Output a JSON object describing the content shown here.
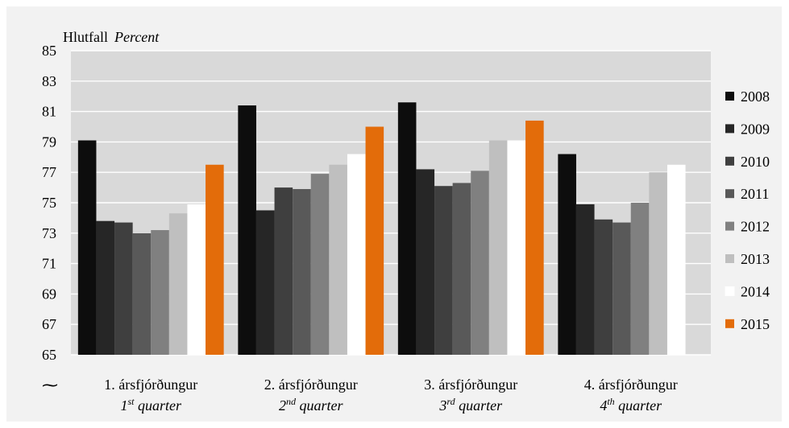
{
  "chart_data": {
    "type": "bar",
    "ylabel": "Hlutfall",
    "ylabel_en": "Percent",
    "ylim": [
      65,
      85
    ],
    "yticks": [
      "65",
      "67",
      "69",
      "71",
      "73",
      "75",
      "77",
      "79",
      "81",
      "83",
      "85"
    ],
    "grid": true,
    "legend_position": "right",
    "break_mark": "⁓",
    "categories": [
      {
        "is": "1. ársfjórðungur",
        "en_num": "1",
        "en_sup": "st",
        "en_rest": " quarter"
      },
      {
        "is": "2. ársfjórðungur",
        "en_num": "2",
        "en_sup": "nd",
        "en_rest": " quarter"
      },
      {
        "is": "3. ársfjórðungur",
        "en_num": "3",
        "en_sup": "rd",
        "en_rest": " quarter"
      },
      {
        "is": "4. ársfjórðungur",
        "en_num": "4",
        "en_sup": "th",
        "en_rest": " quarter"
      }
    ],
    "series": [
      {
        "name": "2008",
        "color": "#0d0d0d",
        "values": [
          79.1,
          81.4,
          81.6,
          78.2
        ]
      },
      {
        "name": "2009",
        "color": "#262626",
        "values": [
          73.8,
          74.5,
          77.2,
          74.9
        ]
      },
      {
        "name": "2010",
        "color": "#3f3f3f",
        "values": [
          73.7,
          76.0,
          76.1,
          73.9
        ]
      },
      {
        "name": "2011",
        "color": "#595959",
        "values": [
          73.0,
          75.9,
          76.3,
          73.7
        ]
      },
      {
        "name": "2012",
        "color": "#808080",
        "values": [
          73.2,
          76.9,
          77.1,
          75.0
        ]
      },
      {
        "name": "2013",
        "color": "#bfbfbf",
        "values": [
          74.3,
          77.5,
          79.1,
          77.0
        ]
      },
      {
        "name": "2014",
        "color": "#ffffff",
        "values": [
          74.9,
          78.2,
          79.1,
          77.5
        ]
      },
      {
        "name": "2015",
        "color": "#e36c0a",
        "values": [
          77.5,
          80.0,
          80.4,
          null
        ]
      }
    ]
  }
}
